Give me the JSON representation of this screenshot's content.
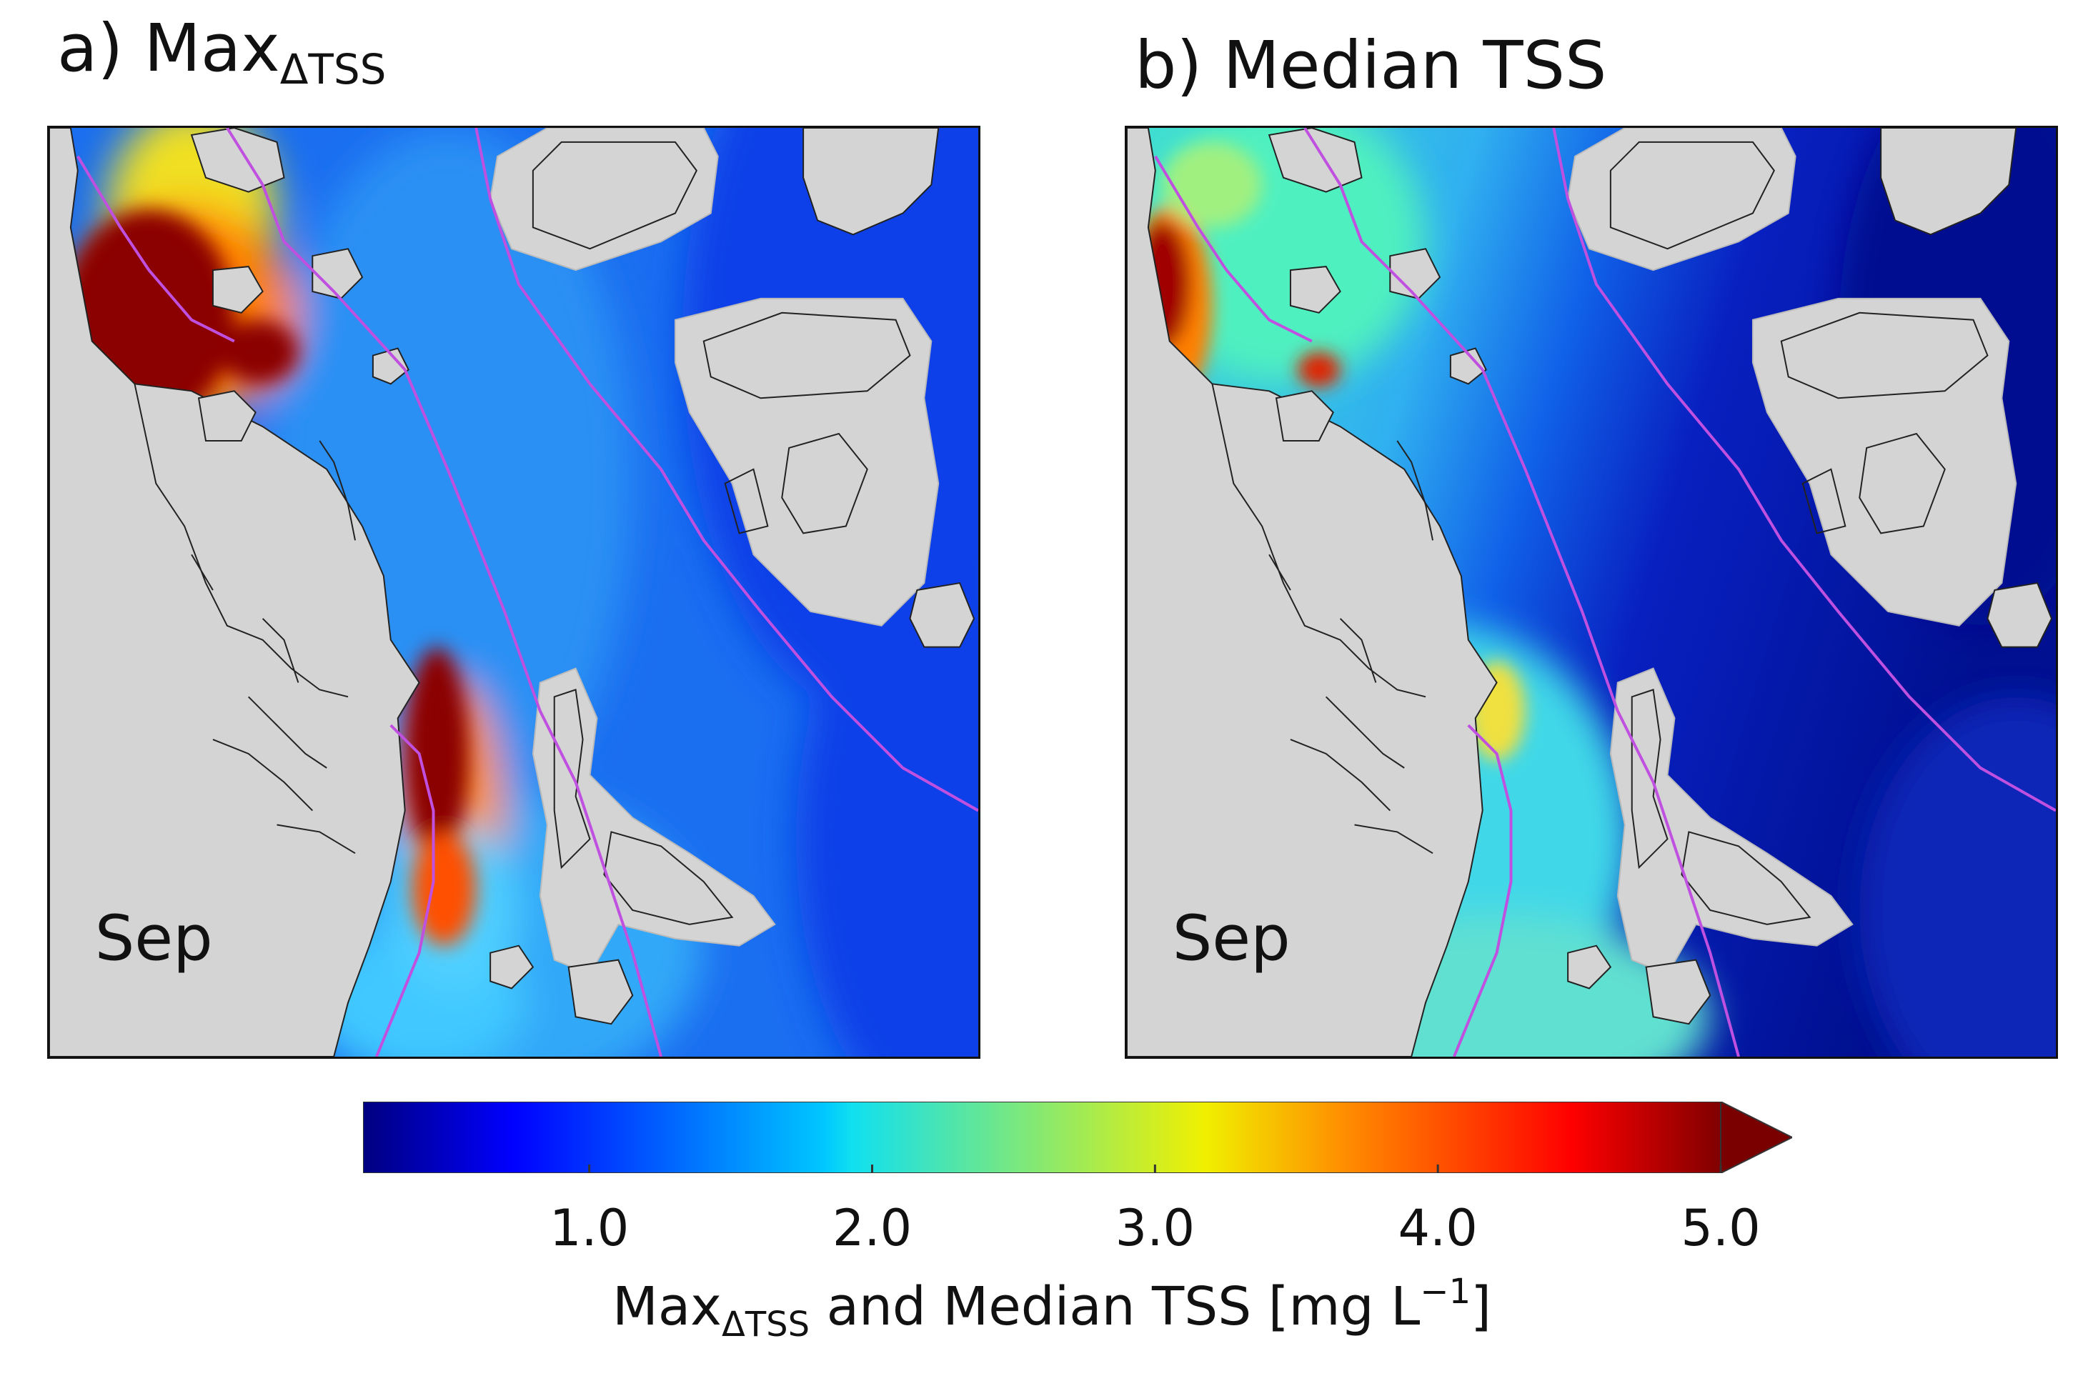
{
  "panels": [
    {
      "prefix": "a) Max",
      "sub": "ΔTSS",
      "month": "Sep"
    },
    {
      "prefix": "b) Median TSS",
      "sub": "",
      "month": "Sep"
    }
  ],
  "colorbar": {
    "ticks": [
      "1.0",
      "2.0",
      "3.0",
      "4.0",
      "5.0"
    ],
    "tick_values": [
      1,
      2,
      3,
      4,
      5
    ],
    "range": [
      0.2,
      5.0
    ],
    "extend": "max",
    "colormap": "jet",
    "label_prefix": "Max",
    "label_sub": "ΔTSS",
    "label_mid": " and Median TSS [mg L",
    "label_sup": "−1",
    "label_end": "]"
  },
  "colors": {
    "land": "#d4d4d4",
    "coastline": "#222222",
    "boundary_line": "#c050e0"
  }
}
